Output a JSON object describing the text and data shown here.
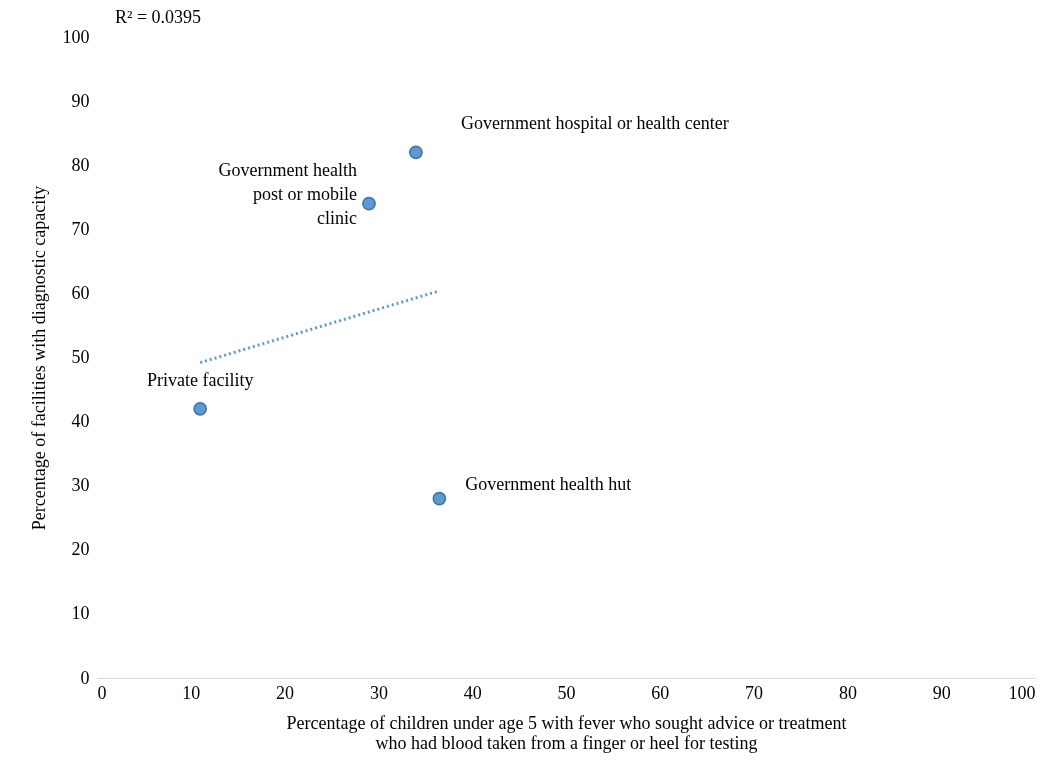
{
  "chart_data": {
    "type": "scatter",
    "xlabel": "Percentage of children under age 5 with fever who sought advice or treatment\nwho had blood taken from a finger or heel for testing",
    "ylabel": "Percentage of facilities with diagnostic capacity",
    "x": [
      11,
      29,
      34,
      36.5
    ],
    "series": [
      {
        "color": "#5b9bd5",
        "values": [
          42,
          74,
          82,
          28
        ]
      },
      {
        "type": "line",
        "color": "#5b9bd5",
        "x": [
          11,
          36.5
        ],
        "values": [
          49.2,
          60.4
        ],
        "line_style": "dotted",
        "marker": "none"
      }
    ],
    "annotations": [
      {
        "text": "Private facility",
        "x": 11,
        "y": 42
      },
      {
        "text": "Government health\npost or mobile\nclinic",
        "x": 29,
        "y": 74
      },
      {
        "text": "Government hospital or health center",
        "x": 34,
        "y": 82
      },
      {
        "text": "Government health hut",
        "x": 36.5,
        "y": 28
      },
      "R² = 0.0395"
    ],
    "xlim": [
      0,
      100
    ],
    "ylim": [
      0,
      100
    ],
    "xticks": [
      0,
      10,
      20,
      30,
      40,
      50,
      60,
      70,
      80,
      90,
      100
    ],
    "yticks": [
      0,
      10,
      20,
      30,
      40,
      50,
      60,
      70,
      80,
      90,
      100
    ],
    "grid": false,
    "marker": "circle"
  }
}
